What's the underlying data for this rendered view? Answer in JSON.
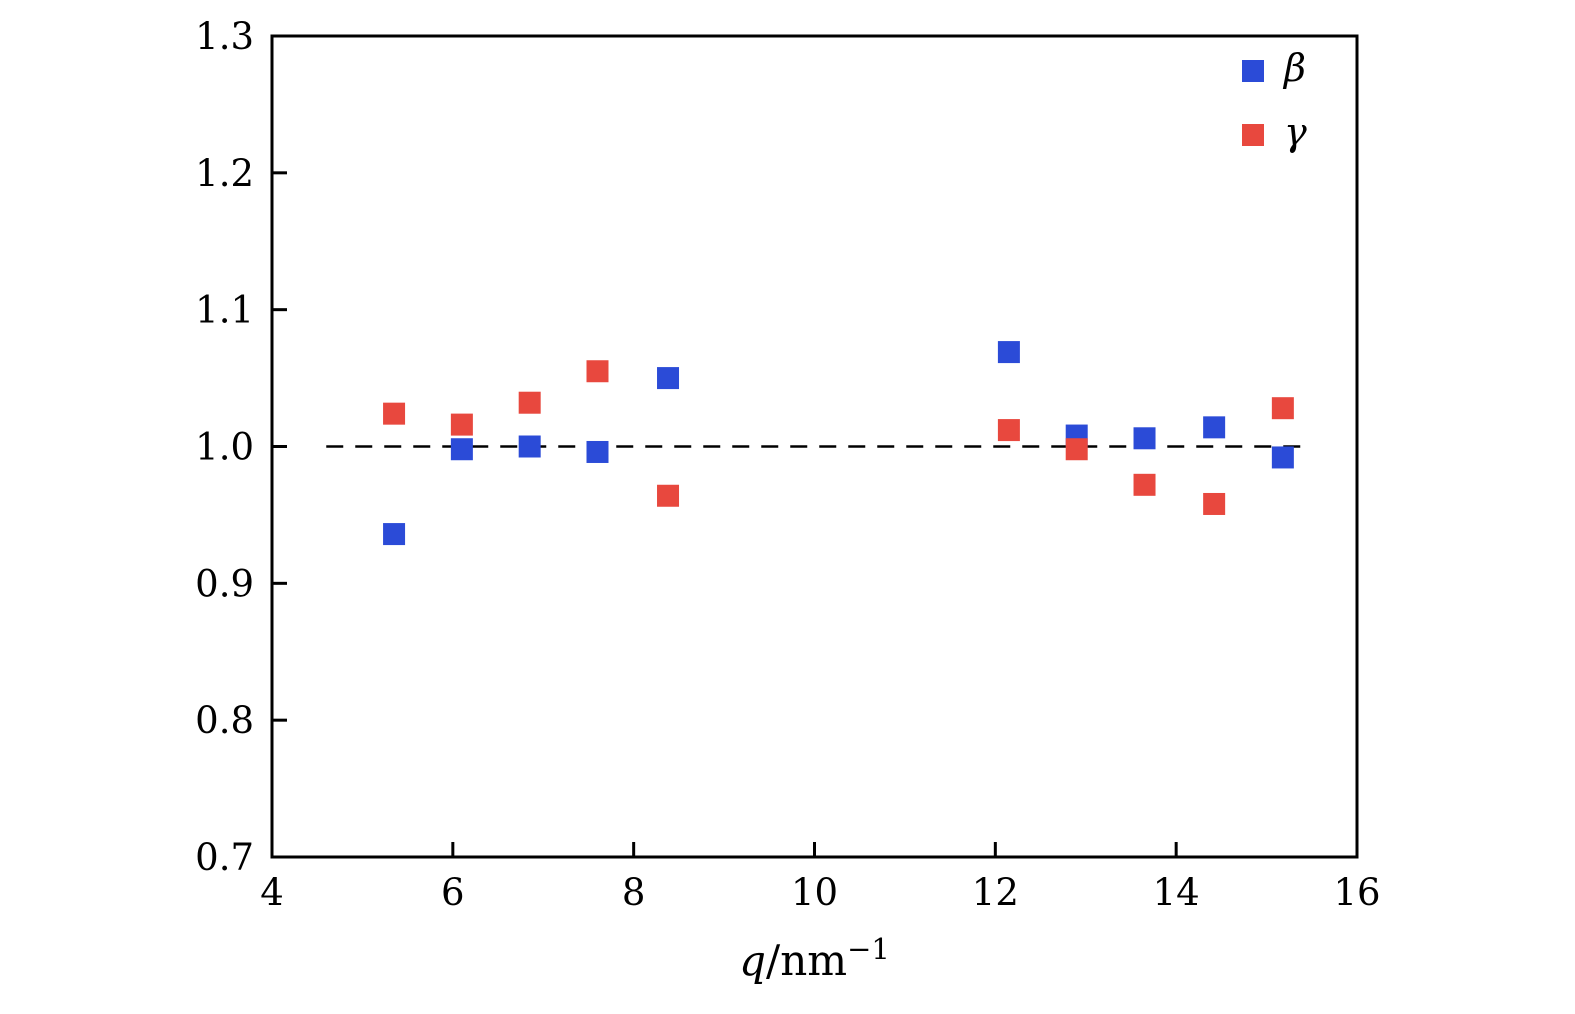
{
  "chart_data": {
    "type": "scatter",
    "title": "",
    "xlabel": "q/nm^-1",
    "xlabel_parts": {
      "italic": "q",
      "plain": "/nm",
      "superscript": "-1"
    },
    "ylabel": "",
    "xlim": [
      4,
      16
    ],
    "ylim": [
      0.7,
      1.3
    ],
    "xticks": [
      4,
      6,
      8,
      10,
      12,
      14,
      16
    ],
    "yticks": [
      0.7,
      0.8,
      0.9,
      1.0,
      1.1,
      1.2,
      1.3
    ],
    "grid": false,
    "legend_position": "top-right",
    "reference_line": {
      "y": 1.0,
      "style": "dashed",
      "color": "#000000",
      "x_start": 4.6,
      "x_end": 15.5
    },
    "series": [
      {
        "name": "β",
        "id": "beta",
        "color": "#2b4bd7",
        "marker": "square",
        "points": [
          [
            5.35,
            0.936
          ],
          [
            6.1,
            0.998
          ],
          [
            6.85,
            1.0
          ],
          [
            7.6,
            0.996
          ],
          [
            8.38,
            1.05
          ],
          [
            12.15,
            1.069
          ],
          [
            12.9,
            1.008
          ],
          [
            13.65,
            1.006
          ],
          [
            14.42,
            1.014
          ],
          [
            15.18,
            0.992
          ]
        ]
      },
      {
        "name": "γ",
        "id": "gamma",
        "color": "#e8483e",
        "marker": "square",
        "points": [
          [
            5.35,
            1.024
          ],
          [
            6.1,
            1.016
          ],
          [
            6.85,
            1.032
          ],
          [
            7.6,
            1.055
          ],
          [
            8.38,
            0.964
          ],
          [
            12.15,
            1.012
          ],
          [
            12.9,
            0.998
          ],
          [
            13.65,
            0.972
          ],
          [
            14.42,
            0.958
          ],
          [
            15.18,
            1.028
          ]
        ]
      }
    ]
  }
}
